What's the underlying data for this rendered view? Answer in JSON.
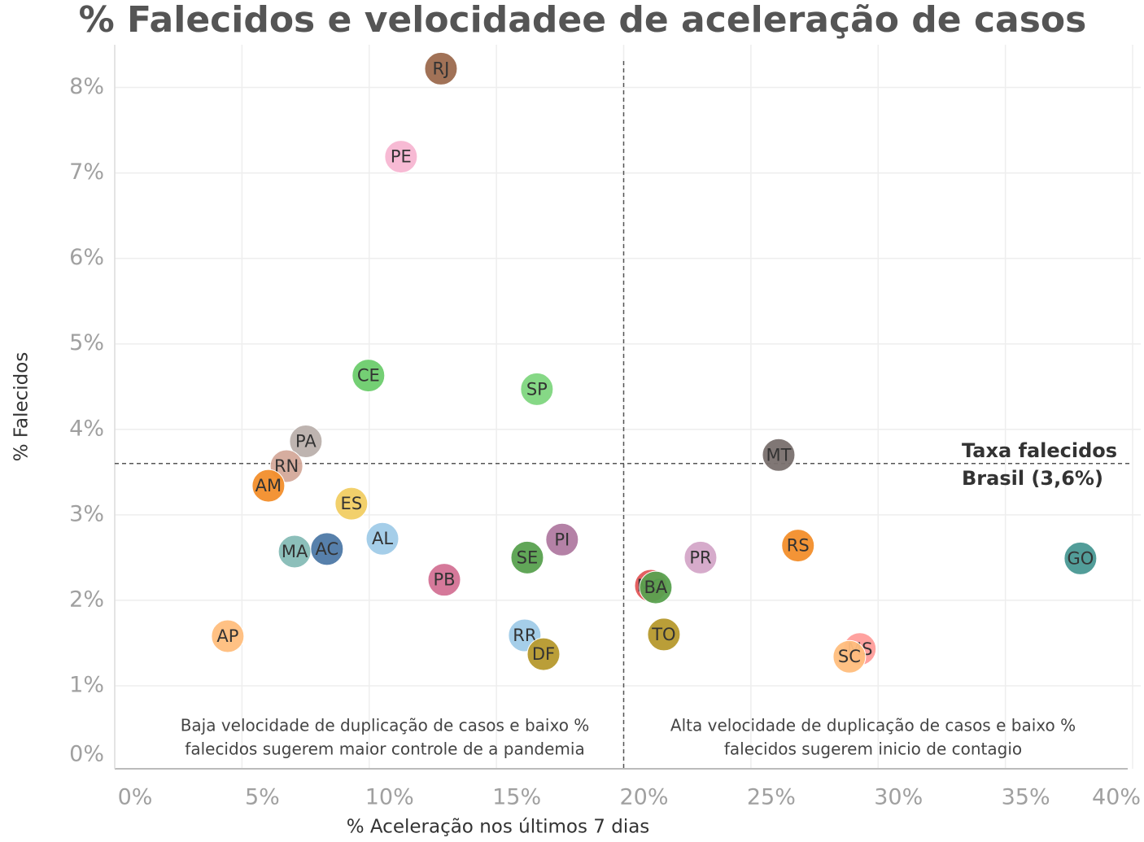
{
  "chart_data": {
    "type": "scatter",
    "title": "% Falecidos e velocidadee de aceleração de casos",
    "x_label": "% Aceleração nos últimos 7 dias",
    "y_label": "% Falecidos",
    "labels": [
      "RJ",
      "PE",
      "CE",
      "SP",
      "PA",
      "RN",
      "AM",
      "ES",
      "AL",
      "MA",
      "AC",
      "PI",
      "SE",
      "PB",
      "AP",
      "RR",
      "DF",
      "MG",
      "BA",
      "TO",
      "PR",
      "RS",
      "MT",
      "GO",
      "MS",
      "SC"
    ],
    "x": [
      12.82,
      11.25,
      9.97,
      16.59,
      7.51,
      6.75,
      6.04,
      9.3,
      10.52,
      7.07,
      8.34,
      17.58,
      16.21,
      12.95,
      4.44,
      16.11,
      16.85,
      21.07,
      21.26,
      21.58,
      23.02,
      26.85,
      26.09,
      37.95,
      29.28,
      28.87
    ],
    "values": [
      8.22,
      7.19,
      4.63,
      4.47,
      3.86,
      3.57,
      3.34,
      3.13,
      2.72,
      2.57,
      2.6,
      2.71,
      2.5,
      2.24,
      1.58,
      1.59,
      1.37,
      2.17,
      2.15,
      1.6,
      2.5,
      2.64,
      3.7,
      2.49,
      1.43,
      1.34
    ],
    "colors": [
      "#9c6a4e",
      "#f7b6d2",
      "#6dcc6d",
      "#7fd67f",
      "#bab0ac",
      "#d4a99a",
      "#f28e2b",
      "#f1ce63",
      "#a0cbe8",
      "#86bcb6",
      "#4e79a7",
      "#b07aa1",
      "#59a14f",
      "#d37295",
      "#ffbe7d",
      "#a0cbe8",
      "#b6992d",
      "#e15759",
      "#59a14f",
      "#b6992d",
      "#d4a6c8",
      "#f28e2b",
      "#79706e",
      "#499894",
      "#ff9d9a",
      "#ffbe7d"
    ],
    "xlim": [
      0,
      40
    ],
    "xticks": [
      {
        "value": 0,
        "label": "0%"
      },
      {
        "value": 5,
        "label": "5%"
      },
      {
        "value": 10,
        "label": "10%"
      },
      {
        "value": 15,
        "label": "15%"
      },
      {
        "value": 20,
        "label": "20%"
      },
      {
        "value": 25,
        "label": "25%"
      },
      {
        "value": 30,
        "label": "30%"
      },
      {
        "value": 35,
        "label": "35%"
      },
      {
        "value": 40,
        "label": "40%"
      }
    ],
    "ylim": [
      0,
      8.5
    ],
    "yticks": [
      {
        "value": 0,
        "label": "0%"
      },
      {
        "value": 1,
        "label": "1%"
      },
      {
        "value": 2,
        "label": "2%"
      },
      {
        "value": 3,
        "label": "3%"
      },
      {
        "value": 4,
        "label": "4%"
      },
      {
        "value": 5,
        "label": "5%"
      },
      {
        "value": 6,
        "label": "6%"
      },
      {
        "value": 7,
        "label": "7%"
      },
      {
        "value": 8,
        "label": "8%"
      }
    ],
    "grid": true,
    "reference_lines": [
      {
        "axis": "y",
        "value": 3.6,
        "label": [
          "Taxa falecidos",
          "Brasil (3,6%)"
        ]
      },
      {
        "axis": "x",
        "value": 20
      }
    ],
    "annotations": [
      [
        "Baja velocidade de duplicação de casos e baixo %",
        "falecidos sugerem maior controle de a pandemia"
      ],
      [
        "Alta velocidade de duplicação de casos e baixo %",
        "falecidos sugerem inicio de contagio"
      ]
    ]
  }
}
